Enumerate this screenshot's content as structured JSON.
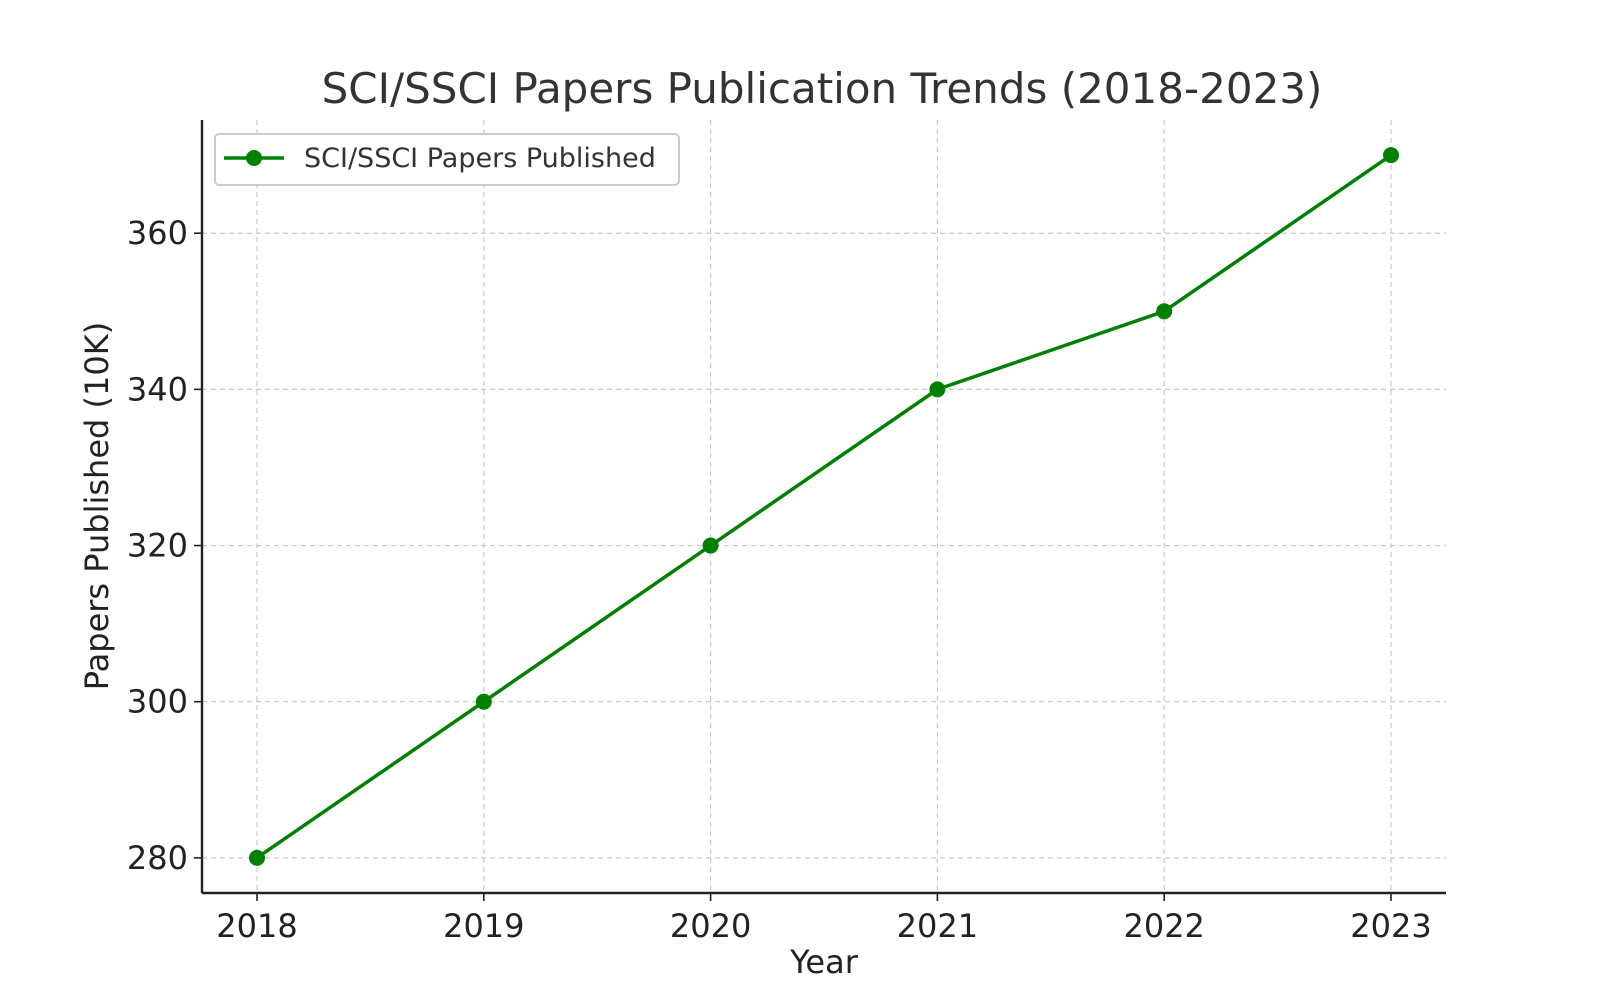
{
  "colors": {
    "series_line": "#008000",
    "grid": "#c8c8c8",
    "axis": "#222222",
    "background": "#ffffff"
  },
  "chart_data": {
    "type": "line",
    "title": "SCI/SSCI Papers Publication Trends (2018-2023)",
    "xlabel": "Year",
    "ylabel": "Papers Published (10K)",
    "x": [
      "2018",
      "2019",
      "2020",
      "2021",
      "2022",
      "2023"
    ],
    "series": [
      {
        "name": "SCI/SSCI Papers Published",
        "values": [
          280,
          300,
          320,
          340,
          350,
          370
        ],
        "marker": "circle"
      }
    ],
    "ylim": [
      275.5,
      374.5
    ],
    "yticks": [
      280,
      300,
      320,
      340,
      360
    ],
    "grid": true,
    "legend": "top-left"
  }
}
